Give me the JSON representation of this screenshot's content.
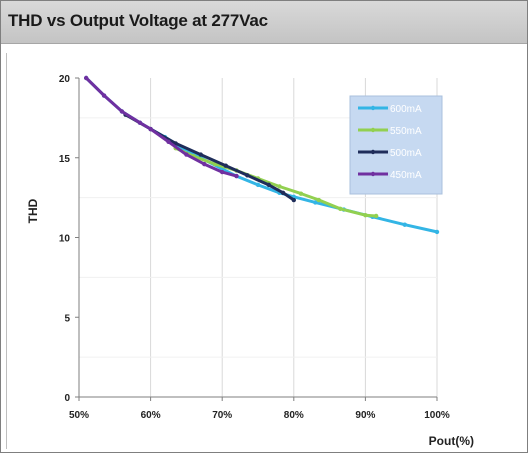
{
  "header": {
    "title": "THD vs Output Voltage at 277Vac"
  },
  "chart_data": {
    "type": "line",
    "title": "THD vs Output Voltage at 277Vac",
    "xlabel": "Pout(%)",
    "ylabel": "THD",
    "xlim": [
      50,
      100
    ],
    "ylim": [
      0,
      20
    ],
    "x_ticks": [
      50,
      60,
      70,
      80,
      90,
      100
    ],
    "x_tick_labels": [
      "50%",
      "60%",
      "70%",
      "80%",
      "90%",
      "100%"
    ],
    "y_ticks": [
      0,
      5,
      10,
      15,
      20
    ],
    "y_tick_labels": [
      "0",
      "5",
      "10",
      "15",
      "20"
    ],
    "grid": {
      "vertical": true,
      "horizontal": false
    },
    "legend_position": "top-right",
    "series": [
      {
        "name": "600mA",
        "color": "#33b5e5",
        "points": [
          [
            51,
            20
          ],
          [
            53.5,
            18.9
          ],
          [
            56,
            17.9
          ],
          [
            58.5,
            17.2
          ],
          [
            60,
            16.8
          ],
          [
            62,
            16.3
          ],
          [
            64.5,
            15.6
          ],
          [
            67,
            15.0
          ],
          [
            70,
            14.3
          ],
          [
            72,
            13.85
          ],
          [
            75,
            13.3
          ],
          [
            78,
            12.8
          ],
          [
            80,
            12.55
          ],
          [
            83,
            12.2
          ],
          [
            87,
            11.75
          ],
          [
            91,
            11.3
          ],
          [
            95.5,
            10.8
          ],
          [
            100,
            10.35
          ]
        ]
      },
      {
        "name": "550mA",
        "color": "#92d050",
        "points": [
          [
            63.5,
            15.6
          ],
          [
            66,
            15.1
          ],
          [
            69,
            14.6
          ],
          [
            72,
            14.2
          ],
          [
            75,
            13.7
          ],
          [
            78,
            13.2
          ],
          [
            81,
            12.75
          ],
          [
            83.5,
            12.35
          ],
          [
            86.5,
            11.8
          ],
          [
            90,
            11.4
          ],
          [
            91.5,
            11.35
          ]
        ]
      },
      {
        "name": "500mA",
        "color": "#1f2d5a",
        "points": [
          [
            56.5,
            17.7
          ],
          [
            60,
            16.8
          ],
          [
            63.5,
            15.9
          ],
          [
            67,
            15.2
          ],
          [
            70.5,
            14.5
          ],
          [
            73.5,
            13.9
          ],
          [
            76.5,
            13.3
          ],
          [
            78.5,
            12.8
          ],
          [
            80,
            12.35
          ]
        ]
      },
      {
        "name": "450mA",
        "color": "#7030a0",
        "points": [
          [
            51,
            20
          ],
          [
            53.5,
            18.9
          ],
          [
            56,
            17.9
          ],
          [
            58.5,
            17.2
          ],
          [
            60,
            16.8
          ],
          [
            62.5,
            16.0
          ],
          [
            65,
            15.2
          ],
          [
            67.5,
            14.6
          ],
          [
            70,
            14.1
          ],
          [
            72,
            13.85
          ]
        ]
      }
    ]
  }
}
